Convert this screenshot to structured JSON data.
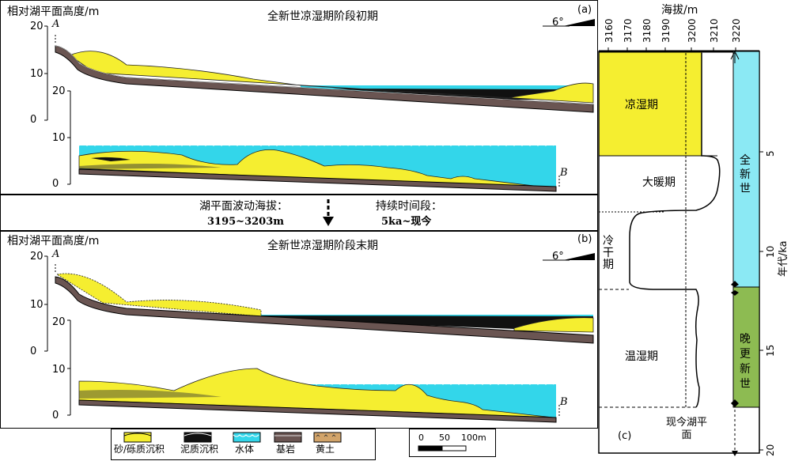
{
  "panel_a": {
    "ylabel": "相对湖平面高度/m",
    "title": "全新世凉湿期阶段初期",
    "tag": "(a)",
    "slope": "6°",
    "point_a": "A",
    "point_b": "B",
    "ticks_upper": [
      "20",
      "10",
      "0"
    ],
    "ticks_lower": [
      "20",
      "10",
      "0"
    ]
  },
  "middle": {
    "line1_label": "湖平面波动海拔：",
    "line1_value": "3195~3203m",
    "line2_label": "持续时间段：",
    "line2_value": "5ka~现今"
  },
  "panel_b": {
    "ylabel": "相对湖平面高度/m",
    "title": "全新世凉湿期阶段末期",
    "tag": "(b)",
    "slope": "6°",
    "point_a": "A",
    "point_b": "B",
    "ticks_upper": [
      "20",
      "10",
      "0"
    ],
    "ticks_lower": [
      "20",
      "10",
      "0"
    ]
  },
  "legend": {
    "items": [
      {
        "label": "砂/砾质沉积",
        "color": "#f5ee30"
      },
      {
        "label": "泥质沉积",
        "color": "#111111"
      },
      {
        "label": "水体",
        "color": "#33d6ea"
      },
      {
        "label": "基岩",
        "color": "#6a5552"
      },
      {
        "label": "黄土",
        "color": "#d2a46a"
      }
    ],
    "scale_labels": [
      "0",
      "50",
      "100m"
    ]
  },
  "panel_c": {
    "tag": "(c)",
    "xlabel": "海拔/m",
    "x_ticks": [
      "3160",
      "3170",
      "3180",
      "3190",
      "3200",
      "3210",
      "3220"
    ],
    "ylabel": "年代/ka",
    "y_ticks": [
      "5",
      "10",
      "15",
      "20"
    ],
    "periods": [
      {
        "label": "凉湿期",
        "color": "#f5ee30"
      },
      {
        "label": "大暖期",
        "color": "#ffffff"
      },
      {
        "label": "冷干期",
        "color": "#ffffff"
      },
      {
        "label": "温湿期",
        "color": "#ffffff"
      }
    ],
    "epochs": [
      {
        "label": "全新世",
        "color": "#8be9f4"
      },
      {
        "label": "晚更新世",
        "color": "#8dbb52"
      }
    ],
    "current_lake_label": "现今湖平面"
  },
  "colors": {
    "sand": "#f5ee30",
    "mud": "#111111",
    "water": "#33d6ea",
    "bedrock": "#6a5552",
    "loess": "#d2a46a"
  }
}
